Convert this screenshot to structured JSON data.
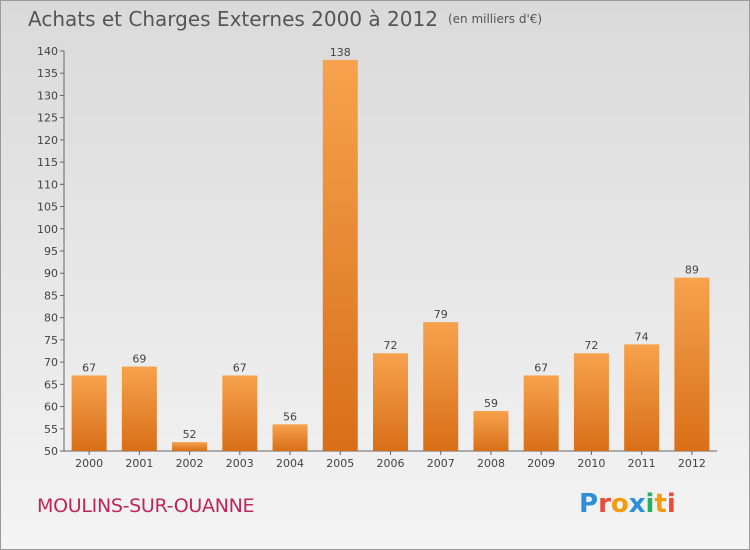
{
  "header": {
    "title": "Achats et Charges Externes 2000 à 2012",
    "unit": "(en milliers d'€)"
  },
  "footer": {
    "commune": "MOULINS-SUR-OUANNE",
    "logo_text": "Proxiti",
    "logo_letters": [
      {
        "ch": "P",
        "color": "#2e8fd8"
      },
      {
        "ch": "r",
        "color": "#e74c3c"
      },
      {
        "ch": "o",
        "color": "#f39c12"
      },
      {
        "ch": "x",
        "color": "#2e8fd8"
      },
      {
        "ch": "i",
        "color": "#27ae60"
      },
      {
        "ch": "t",
        "color": "#f39c12"
      },
      {
        "ch": "i",
        "color": "#e74c3c"
      }
    ]
  },
  "chart_data": {
    "type": "bar",
    "title": "Achats et Charges Externes 2000 à 2012",
    "subtitle": "(en milliers d'€)",
    "xlabel": "",
    "ylabel": "",
    "categories": [
      "2000",
      "2001",
      "2002",
      "2003",
      "2004",
      "2005",
      "2006",
      "2007",
      "2008",
      "2009",
      "2010",
      "2011",
      "2012"
    ],
    "values": [
      67,
      69,
      52,
      67,
      56,
      138,
      72,
      79,
      59,
      67,
      72,
      74,
      89
    ],
    "ylim": [
      50,
      140
    ],
    "yticks": [
      50,
      55,
      60,
      65,
      70,
      75,
      80,
      85,
      90,
      95,
      100,
      105,
      110,
      115,
      120,
      125,
      130,
      135,
      140
    ],
    "grid": false,
    "legend": "none",
    "bar_color_top": "#f7a24e",
    "bar_color_bottom": "#d86f18"
  }
}
